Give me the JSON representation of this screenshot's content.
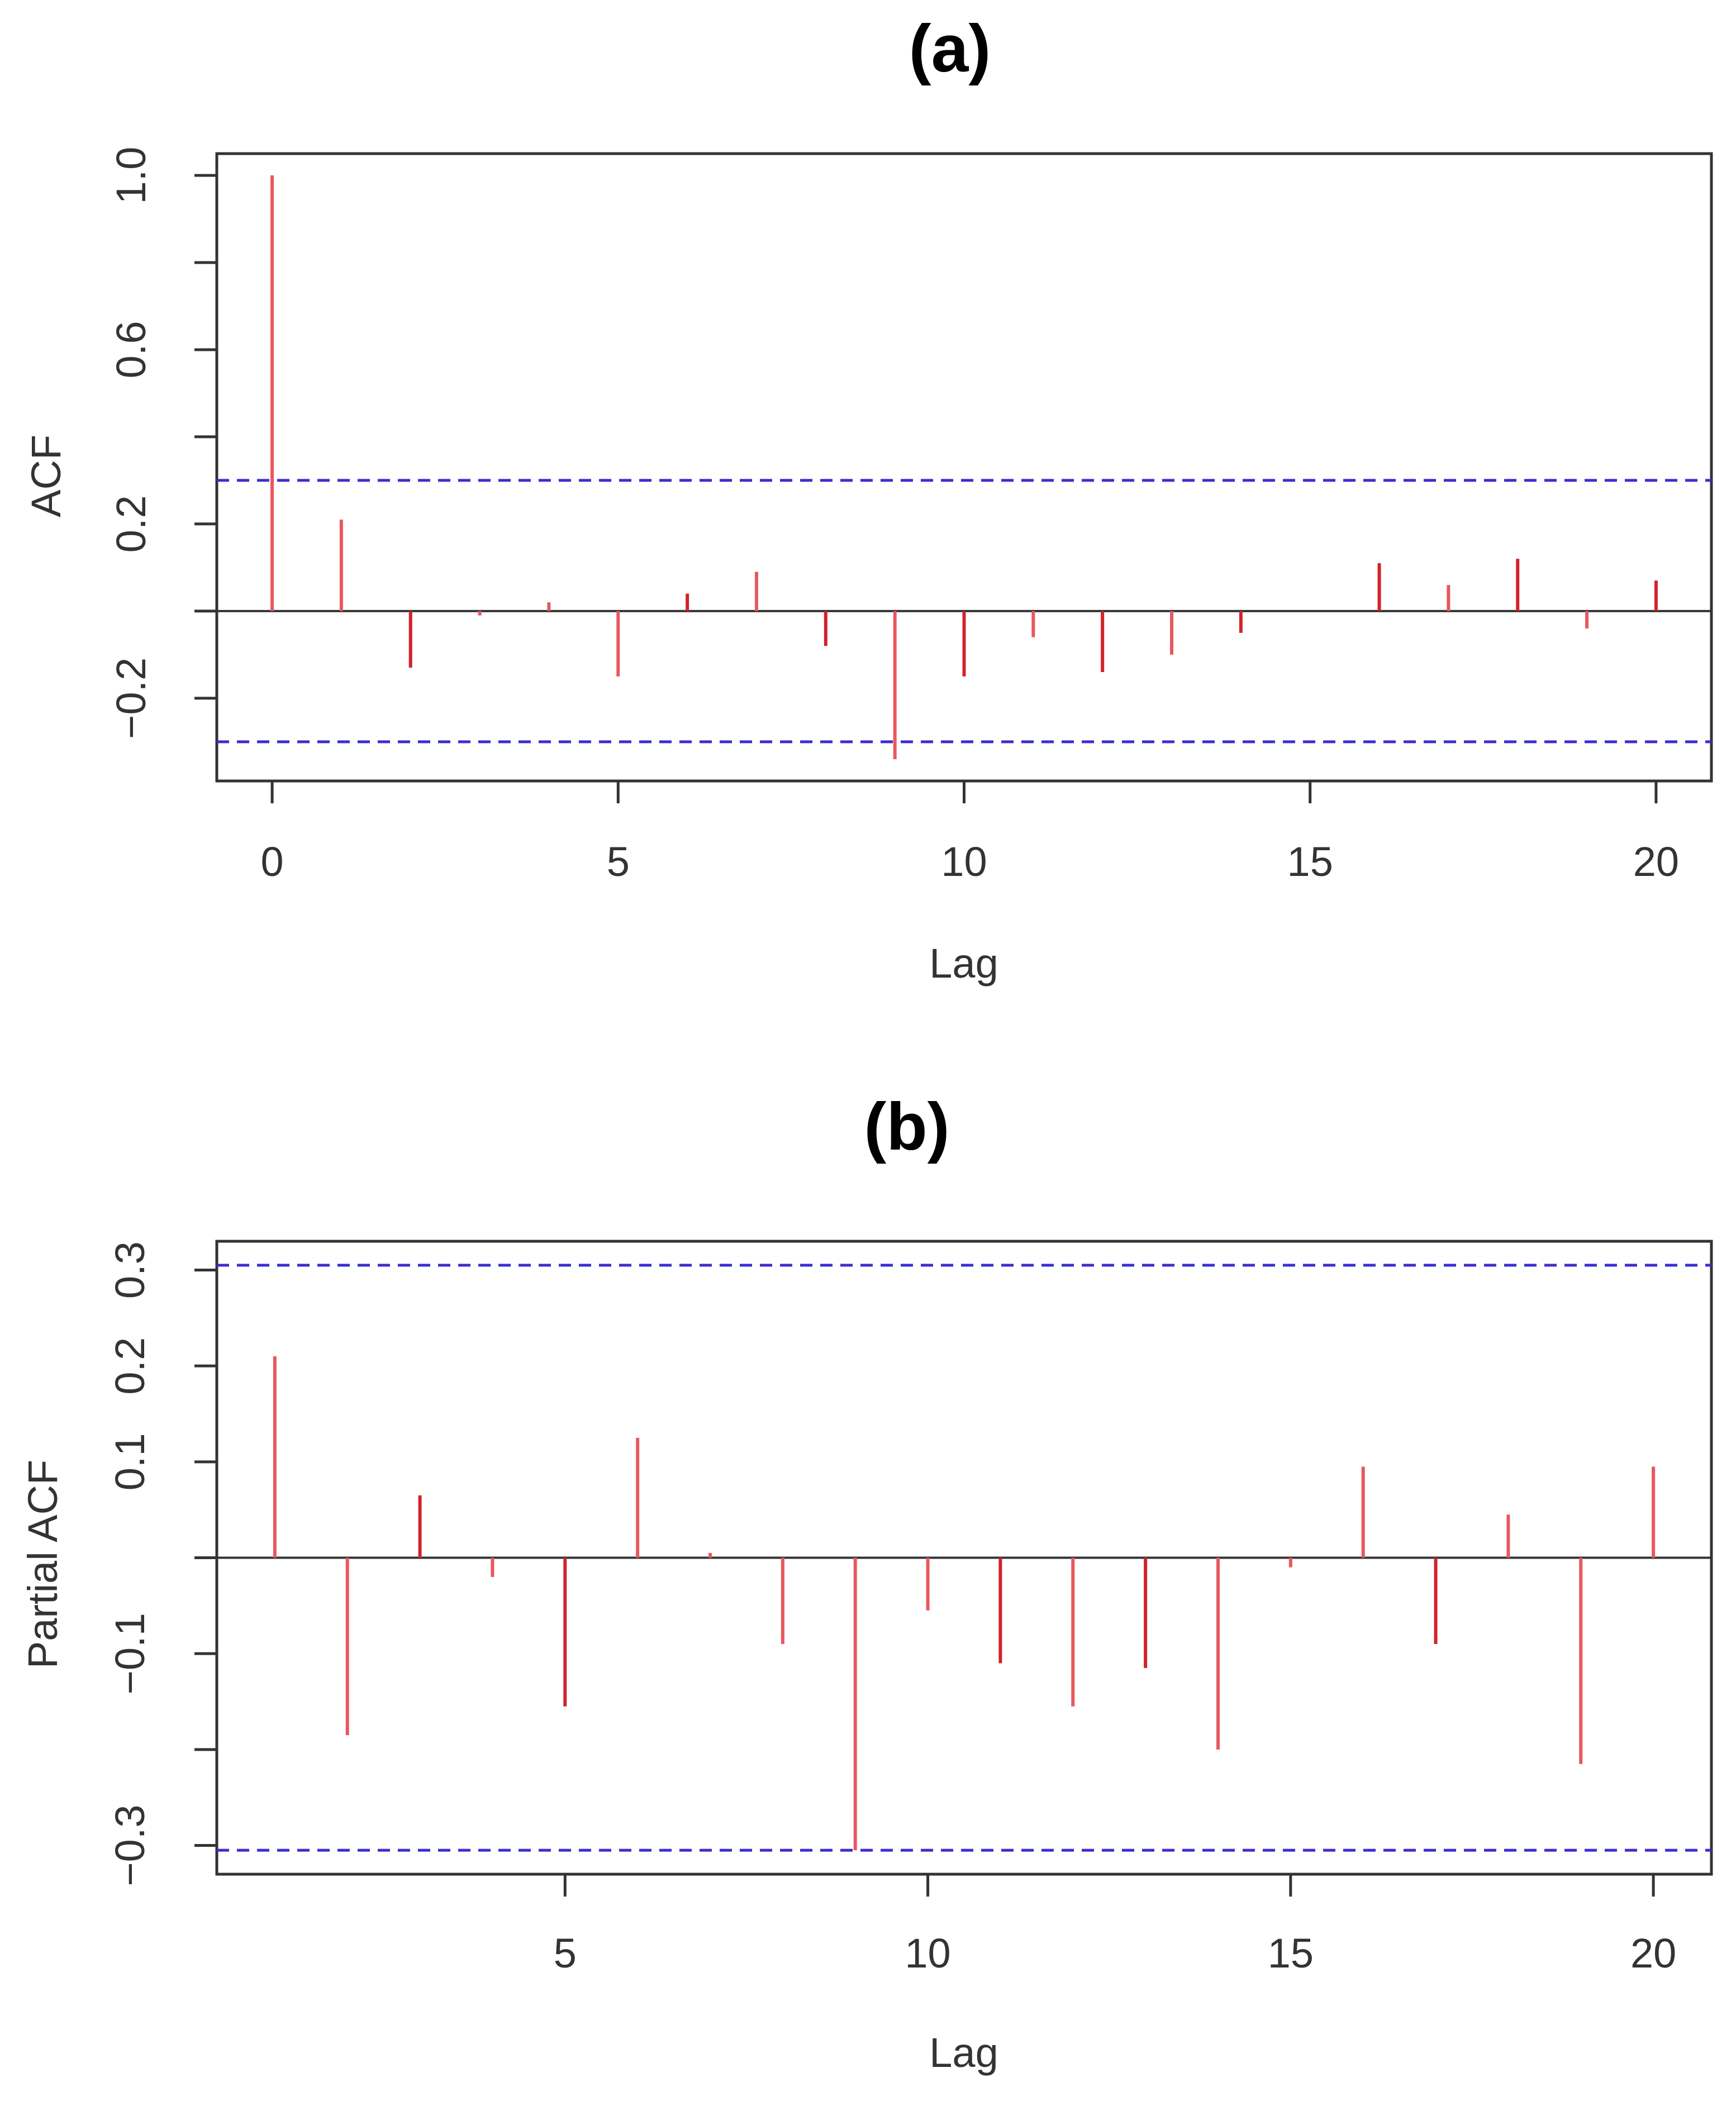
{
  "chart_data": [
    {
      "type": "bar",
      "panel": "(a)",
      "title": "(a)",
      "xlabel": "Lag",
      "ylabel": "ACF",
      "x": [
        0,
        1,
        2,
        3,
        4,
        5,
        6,
        7,
        8,
        9,
        10,
        11,
        12,
        13,
        14,
        15,
        16,
        17,
        18,
        19,
        20
      ],
      "values": [
        1.0,
        0.21,
        -0.13,
        -0.01,
        0.02,
        -0.15,
        0.04,
        0.09,
        -0.08,
        -0.34,
        -0.15,
        -0.06,
        -0.14,
        -0.1,
        -0.05,
        0.0,
        0.11,
        0.06,
        0.12,
        -0.04,
        0.07
      ],
      "confidence_band": 0.3,
      "xlim": [
        -0.8,
        20.8
      ],
      "ylim": [
        -0.39,
        1.05
      ],
      "xticks": [
        0,
        5,
        10,
        15,
        20
      ],
      "xtick_labels": [
        "0",
        "5",
        "10",
        "15",
        "20"
      ],
      "yticks_labeled": [
        1.0,
        0.6,
        0.2,
        -0.2
      ],
      "ytick_labels": [
        "1.0",
        "0.6",
        "0.2",
        "−0.2"
      ],
      "yticks_minor": [
        0.8,
        0.4,
        0.0
      ],
      "colors": {
        "bar": "#e8585e",
        "bar_dark": "#d2232a",
        "band": "#3a2fd0",
        "zero": "#333333",
        "frame": "#333333"
      }
    },
    {
      "type": "bar",
      "panel": "(b)",
      "title": "(b)",
      "xlabel": "Lag",
      "ylabel": "Partial ACF",
      "x": [
        1,
        2,
        3,
        4,
        5,
        6,
        7,
        8,
        9,
        10,
        11,
        12,
        13,
        14,
        15,
        16,
        17,
        18,
        19,
        20
      ],
      "values": [
        0.21,
        -0.185,
        0.065,
        -0.02,
        -0.155,
        0.125,
        0.005,
        -0.09,
        -0.305,
        -0.055,
        -0.11,
        -0.155,
        -0.115,
        -0.2,
        -0.01,
        0.095,
        -0.09,
        0.045,
        -0.215,
        0.095
      ],
      "confidence_band": 0.305,
      "xlim": [
        0.2,
        20.8
      ],
      "ylim": [
        -0.33,
        0.33
      ],
      "xticks": [
        5,
        10,
        15,
        20
      ],
      "xtick_labels": [
        "5",
        "10",
        "15",
        "20"
      ],
      "yticks_labeled": [
        0.3,
        0.2,
        0.1,
        -0.1,
        -0.3
      ],
      "ytick_labels": [
        "0.3",
        "0.2",
        "0.1",
        "−0.1",
        "−0.3"
      ],
      "yticks_minor": [
        0.0,
        -0.2
      ],
      "colors": {
        "bar": "#e8585e",
        "bar_dark": "#d2232a",
        "band": "#3a2fd0",
        "zero": "#333333",
        "frame": "#333333"
      }
    }
  ]
}
